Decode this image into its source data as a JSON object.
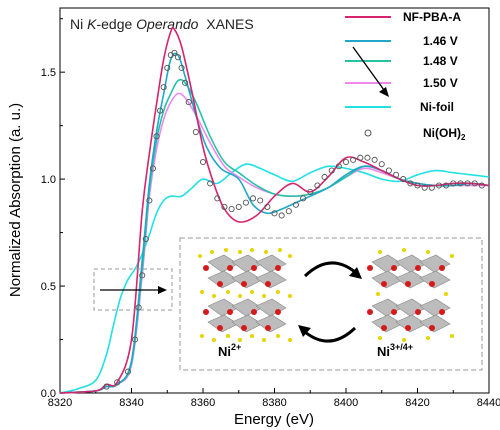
{
  "colors": {
    "nf_pba_a": "#d6246e",
    "v146": "#20a7c9",
    "v148": "#26c3a6",
    "v150": "#ee88f0",
    "ni_foil": "#22e0e6",
    "ni_oh2": "#555555"
  },
  "chart_data": {
    "type": "line",
    "title": {
      "prefix": "Ni ",
      "italic1": "K",
      "middle": "-edge ",
      "italic2": "Operando",
      "suffix": "  XANES"
    },
    "xlabel": "Energy (eV)",
    "ylabel": "Normalized Absorption (a. u.)",
    "xlim": [
      8320,
      8440
    ],
    "ylim": [
      0.0,
      1.8
    ],
    "xticks": [
      8320,
      8340,
      8360,
      8380,
      8400,
      8420,
      8440
    ],
    "xtick_labels": [
      "8320",
      "8340",
      "8360",
      "8380",
      "8400",
      "8420",
      "8440"
    ],
    "yticks": [
      0.0,
      0.5,
      1.0,
      1.5
    ],
    "ytick_labels": [
      "0.0",
      "0.5",
      "1.0",
      "1.5"
    ],
    "legend_position": "top-right",
    "legend": {
      "nf_pba_a": "NF-PBA-A",
      "v146": "1.46 V",
      "v148": "1.48 V",
      "v150": "1.50 V",
      "ni_foil": "Ni-foil",
      "ni_oh2_base": "Ni(OH)",
      "ni_oh2_sub": "2"
    },
    "series": [
      {
        "name": "NF-PBA-A",
        "color_key": "nf_pba_a",
        "style": "line",
        "x": [
          8320,
          8330,
          8333,
          8336,
          8340,
          8343,
          8345,
          8347,
          8349,
          8351,
          8352,
          8354,
          8357,
          8360,
          8363,
          8366,
          8370,
          8375,
          8380,
          8385,
          8390,
          8395,
          8400,
          8405,
          8410,
          8415,
          8420,
          8425,
          8430,
          8435,
          8440
        ],
        "y": [
          0.0,
          0.01,
          0.04,
          0.05,
          0.25,
          0.85,
          1.12,
          1.35,
          1.56,
          1.69,
          1.7,
          1.62,
          1.4,
          1.15,
          0.98,
          0.86,
          0.8,
          0.83,
          0.92,
          0.98,
          0.94,
          1.01,
          1.1,
          1.08,
          1.04,
          1.0,
          0.97,
          0.97,
          0.98,
          0.98,
          0.97
        ]
      },
      {
        "name": "1.46 V",
        "color_key": "v146",
        "style": "line",
        "x": [
          8320,
          8330,
          8333,
          8336,
          8340,
          8343,
          8345,
          8347,
          8349,
          8351,
          8353,
          8355,
          8358,
          8361,
          8365,
          8370,
          8374,
          8378,
          8382,
          8386,
          8390,
          8395,
          8400,
          8405,
          8410,
          8415,
          8420,
          8425,
          8430,
          8435,
          8440
        ],
        "y": [
          0.0,
          0.01,
          0.03,
          0.04,
          0.15,
          0.62,
          0.98,
          1.22,
          1.4,
          1.56,
          1.58,
          1.48,
          1.3,
          1.15,
          1.05,
          1.0,
          0.88,
          0.84,
          0.86,
          0.89,
          0.92,
          0.96,
          1.02,
          1.06,
          1.04,
          1.0,
          0.98,
          0.97,
          0.97,
          0.98,
          0.97
        ]
      },
      {
        "name": "1.48 V",
        "color_key": "v148",
        "style": "line",
        "x": [
          8320,
          8330,
          8333,
          8336,
          8340,
          8343,
          8345,
          8347,
          8349,
          8351,
          8353,
          8355,
          8358,
          8362,
          8366,
          8370,
          8375,
          8380,
          8385,
          8390,
          8395,
          8400,
          8405,
          8410,
          8415,
          8420,
          8425,
          8430,
          8435,
          8440
        ],
        "y": [
          0.0,
          0.01,
          0.03,
          0.04,
          0.14,
          0.58,
          0.95,
          1.18,
          1.32,
          1.4,
          1.46,
          1.45,
          1.36,
          1.2,
          1.08,
          1.03,
          0.97,
          0.93,
          0.92,
          0.93,
          0.96,
          1.01,
          1.06,
          1.04,
          1.0,
          0.98,
          0.97,
          0.97,
          0.98,
          0.97
        ]
      },
      {
        "name": "1.50 V",
        "color_key": "v150",
        "style": "line",
        "x": [
          8320,
          8330,
          8333,
          8336,
          8340,
          8343,
          8345,
          8347,
          8349,
          8351,
          8353,
          8355,
          8358,
          8362,
          8366,
          8370,
          8375,
          8380,
          8385,
          8390,
          8395,
          8400,
          8405,
          8410,
          8415,
          8420,
          8425,
          8430,
          8435,
          8440
        ],
        "y": [
          0.0,
          0.01,
          0.03,
          0.04,
          0.13,
          0.55,
          0.92,
          1.14,
          1.28,
          1.36,
          1.4,
          1.38,
          1.3,
          1.17,
          1.06,
          1.01,
          0.96,
          0.93,
          0.92,
          0.93,
          0.96,
          1.01,
          1.05,
          1.03,
          1.0,
          0.98,
          0.97,
          0.97,
          0.97,
          0.97
        ]
      },
      {
        "name": "Ni-foil",
        "color_key": "ni_foil",
        "style": "line",
        "x": [
          8320,
          8325,
          8330,
          8333,
          8335,
          8337,
          8339,
          8341,
          8343,
          8345,
          8347,
          8349,
          8351,
          8354,
          8357,
          8360,
          8364,
          8368,
          8372,
          8376,
          8380,
          8385,
          8390,
          8395,
          8400,
          8405,
          8410,
          8415,
          8420,
          8425,
          8430,
          8435,
          8440
        ],
        "y": [
          0.0,
          0.02,
          0.06,
          0.18,
          0.32,
          0.45,
          0.53,
          0.58,
          0.65,
          0.74,
          0.84,
          0.9,
          0.92,
          0.92,
          0.96,
          1.0,
          0.98,
          1.03,
          1.07,
          1.05,
          1.02,
          0.99,
          1.03,
          1.06,
          1.05,
          1.03,
          1.0,
          0.99,
          1.02,
          1.04,
          1.03,
          1.02,
          1.01
        ]
      },
      {
        "name": "Ni(OH)2",
        "color_key": "ni_oh2",
        "style": "markers",
        "x": [
          8333,
          8336,
          8339,
          8341,
          8342,
          8343,
          8344,
          8345,
          8346,
          8347,
          8348,
          8349,
          8350,
          8351,
          8352,
          8353,
          8354,
          8355,
          8356,
          8358,
          8360,
          8362,
          8364,
          8366,
          8368,
          8370,
          8372,
          8374,
          8376,
          8378,
          8380,
          8382,
          8384,
          8386,
          8388,
          8390,
          8392,
          8394,
          8396,
          8398,
          8400,
          8402,
          8404,
          8406,
          8408,
          8410,
          8412,
          8414,
          8416,
          8418,
          8420,
          8422,
          8424,
          8426,
          8428,
          8430,
          8432,
          8434,
          8436,
          8438
        ],
        "y": [
          0.03,
          0.05,
          0.1,
          0.25,
          0.4,
          0.55,
          0.72,
          0.9,
          1.05,
          1.2,
          1.32,
          1.43,
          1.52,
          1.58,
          1.59,
          1.57,
          1.52,
          1.45,
          1.36,
          1.22,
          1.08,
          0.98,
          0.91,
          0.87,
          0.86,
          0.87,
          0.89,
          0.91,
          0.9,
          0.87,
          0.84,
          0.83,
          0.85,
          0.88,
          0.91,
          0.94,
          0.97,
          1.01,
          1.04,
          1.06,
          1.08,
          1.09,
          1.1,
          1.1,
          1.09,
          1.07,
          1.04,
          1.02,
          1.0,
          0.98,
          0.97,
          0.96,
          0.96,
          0.97,
          0.97,
          0.98,
          0.98,
          0.98,
          0.98,
          0.97
        ]
      }
    ],
    "inset": {
      "label_left_base": "Ni",
      "label_left_sup": "2+",
      "label_right_base": "Ni",
      "label_right_sup": "3+/4+"
    }
  }
}
